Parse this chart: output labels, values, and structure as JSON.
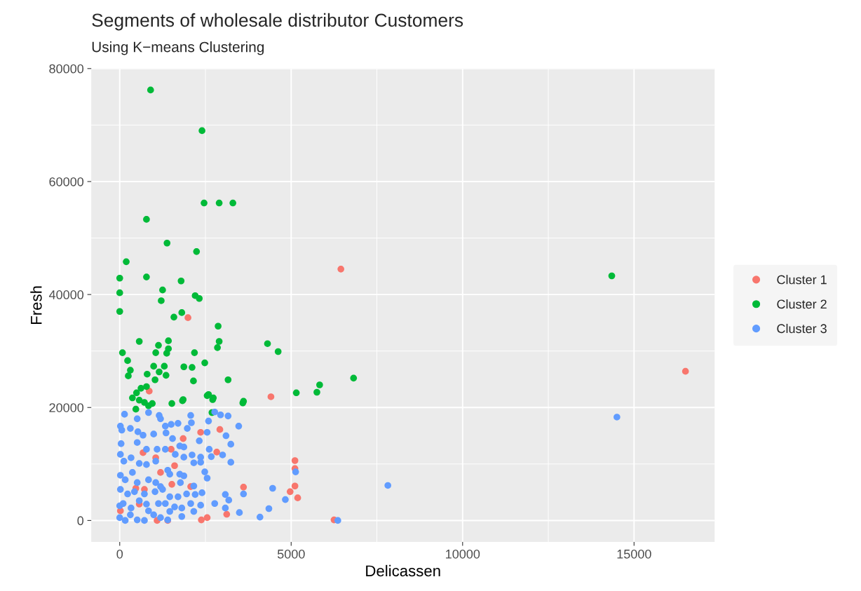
{
  "chart_data": {
    "type": "scatter",
    "title": "Segments of wholesale distributor Customers",
    "subtitle": "Using K−means Clustering",
    "xlabel": "Delicassen",
    "ylabel": "Fresh",
    "xlim": [
      -830,
      17350
    ],
    "ylim": [
      -3800,
      80000
    ],
    "xticks": [
      0,
      5000,
      10000,
      15000
    ],
    "yticks": [
      0,
      20000,
      40000,
      60000,
      80000
    ],
    "grid": true,
    "legend": "right",
    "marker": "circle",
    "series": [
      {
        "name": "Cluster 1",
        "color": "#f8766d",
        "x": [
          860,
          2360,
          2920,
          1850,
          1500,
          2830,
          680,
          1050,
          1600,
          1190,
          1520,
          470,
          2070,
          20,
          1090,
          1400,
          2380,
          2550,
          3120,
          3610,
          4410,
          5110,
          5110,
          5110,
          4970,
          5190,
          6250,
          6450,
          16500,
          1990,
          720,
          570
        ],
        "values": [
          22900,
          15600,
          16100,
          14500,
          12600,
          12100,
          12000,
          11100,
          9700,
          8500,
          6400,
          5700,
          6000,
          1700,
          0,
          0,
          100,
          500,
          1100,
          5900,
          21900,
          10600,
          9200,
          6100,
          5100,
          4000,
          100,
          44500,
          26400,
          35900,
          5500,
          2900
        ]
      },
      {
        "name": "Cluster 2",
        "color": "#00ba38",
        "x": [
          900,
          2400,
          2460,
          2900,
          3300,
          780,
          1380,
          2240,
          190,
          0,
          780,
          1250,
          1790,
          0,
          2200,
          2320,
          1210,
          1810,
          1580,
          0,
          2870,
          570,
          1130,
          1420,
          1420,
          1050,
          1370,
          2180,
          2480,
          2900,
          2850,
          1870,
          2110,
          990,
          1300,
          80,
          230,
          310,
          250,
          800,
          1030,
          1350,
          2150,
          3160,
          1150,
          620,
          780,
          490,
          2590,
          2730,
          3610,
          1850,
          370,
          4310,
          4620,
          5150,
          5750,
          5830,
          6820,
          14350,
          720,
          950,
          470,
          1520,
          1830,
          2550,
          2710,
          3590,
          2690,
          570,
          840
        ],
        "values": [
          76200,
          69000,
          56200,
          56200,
          56200,
          53300,
          49100,
          47600,
          45800,
          42900,
          43100,
          40800,
          42400,
          40300,
          39800,
          39300,
          38900,
          36800,
          36000,
          37000,
          34400,
          31700,
          31000,
          31800,
          30400,
          29700,
          29600,
          29700,
          27900,
          31700,
          30600,
          27200,
          27100,
          27300,
          27300,
          29700,
          28300,
          26600,
          25600,
          25900,
          24900,
          25700,
          24700,
          24900,
          26300,
          23400,
          23700,
          22600,
          22300,
          21700,
          21100,
          21400,
          21700,
          31300,
          29900,
          22600,
          22700,
          24000,
          25200,
          43300,
          20900,
          20700,
          19700,
          20700,
          21200,
          22100,
          21400,
          20800,
          19100,
          21300,
          20300
        ]
      },
      {
        "name": "Cluster 3",
        "color": "#619cff",
        "x": [
          140,
          510,
          840,
          1150,
          1190,
          1500,
          1700,
          1970,
          2070,
          2090,
          2590,
          2770,
          2940,
          3160,
          3470,
          20,
          60,
          310,
          530,
          680,
          990,
          1330,
          1350,
          1540,
          1750,
          1870,
          2320,
          2550,
          3100,
          3240,
          40,
          510,
          780,
          1090,
          1330,
          1620,
          1870,
          2110,
          2160,
          2360,
          2360,
          2610,
          2670,
          3000,
          3240,
          20,
          120,
          330,
          570,
          780,
          1050,
          1400,
          1460,
          1750,
          1870,
          2480,
          2550,
          20,
          160,
          370,
          510,
          840,
          1050,
          1190,
          1770,
          2160,
          20,
          230,
          430,
          720,
          1030,
          1250,
          1460,
          1700,
          1950,
          2200,
          2400,
          3080,
          3180,
          2770,
          3080,
          3490,
          0,
          100,
          330,
          570,
          780,
          1130,
          1330,
          1600,
          1810,
          2070,
          2360,
          2160,
          0,
          160,
          310,
          510,
          720,
          990,
          1190,
          1400,
          1810,
          1460,
          840,
          4090,
          4350,
          4460,
          4830,
          5130,
          3610,
          7820,
          6360,
          14500
        ],
        "values": [
          18800,
          18000,
          19100,
          18600,
          18000,
          17000,
          17200,
          16300,
          18600,
          17300,
          17600,
          19200,
          18700,
          18500,
          16700,
          16700,
          16000,
          16300,
          15700,
          15100,
          15300,
          16700,
          15500,
          14500,
          13200,
          13000,
          14100,
          15600,
          15000,
          13500,
          13600,
          13800,
          12600,
          12600,
          12600,
          11700,
          11200,
          11600,
          10200,
          10300,
          11200,
          12600,
          11300,
          11600,
          10300,
          11700,
          10500,
          11100,
          10100,
          9900,
          10500,
          8900,
          8200,
          8200,
          7900,
          8600,
          7500,
          8000,
          7200,
          8500,
          6700,
          7200,
          6700,
          6000,
          6700,
          6100,
          5500,
          4700,
          5100,
          4700,
          5100,
          5500,
          4200,
          4200,
          4700,
          4600,
          4900,
          4600,
          3600,
          3000,
          2200,
          1400,
          2600,
          3000,
          2200,
          3500,
          2900,
          3000,
          3000,
          2400,
          2200,
          3000,
          2700,
          1600,
          500,
          0,
          1000,
          100,
          0,
          1000,
          500,
          100,
          700,
          1600,
          1700,
          600,
          2100,
          5700,
          3700,
          8600,
          4700,
          6200,
          0,
          18300
        ]
      }
    ]
  }
}
